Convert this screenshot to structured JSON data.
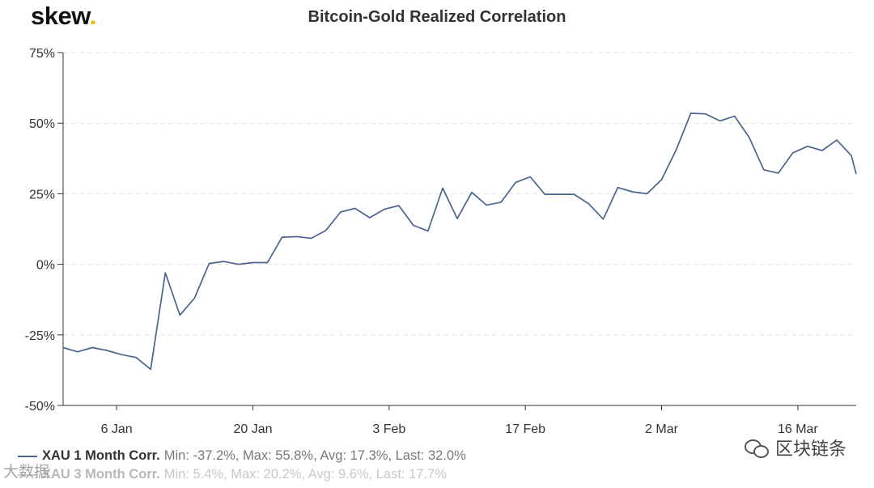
{
  "logo": {
    "text": "skew",
    "dot": "."
  },
  "chart_data": {
    "type": "line",
    "title": "Bitcoin-Gold Realized Correlation",
    "xlabel": "",
    "ylabel": "",
    "ylim": [
      -50,
      75
    ],
    "y_ticks": [
      {
        "value": 75,
        "label": "75%"
      },
      {
        "value": 50,
        "label": "50%"
      },
      {
        "value": 25,
        "label": "25%"
      },
      {
        "value": 0,
        "label": "0%"
      },
      {
        "value": -25,
        "label": "-25%"
      },
      {
        "value": -50,
        "label": "-50%"
      }
    ],
    "x_ticks": [
      {
        "value": 6,
        "label": "6 Jan"
      },
      {
        "value": 20,
        "label": "20 Jan"
      },
      {
        "value": 34,
        "label": "3 Feb"
      },
      {
        "value": 48,
        "label": "17 Feb"
      },
      {
        "value": 62,
        "label": "2 Mar"
      },
      {
        "value": 76,
        "label": "16 Mar"
      }
    ],
    "xlim": [
      0.5,
      82
    ],
    "grid": true,
    "legend_position": "bottom-left",
    "series": [
      {
        "name": "XAU 1 Month Corr.",
        "color": "#4a6491",
        "stats": "Min: -37.2%, Max: 55.8%, Avg: 17.3%, Last: 32.0%",
        "x": [
          0.5,
          2,
          3.5,
          5,
          6.5,
          8,
          9.5,
          11,
          12.5,
          14,
          15.5,
          17,
          18.5,
          20,
          21.5,
          23,
          24.5,
          26,
          27.5,
          29,
          30.5,
          32,
          33.5,
          35,
          36.5,
          38,
          39.5,
          41,
          42.5,
          44,
          45.5,
          47,
          48.5,
          50,
          51.5,
          53,
          54.5,
          56,
          57.5,
          59,
          60.5,
          62,
          63.5,
          65,
          66.5,
          68,
          69.5,
          71,
          72.5,
          74,
          75.5,
          77,
          78.5,
          80,
          81.5,
          82
        ],
        "y": [
          -29.5,
          -31,
          -29.5,
          -30.5,
          -32,
          -33,
          -37.2,
          -3,
          -18,
          -12,
          0.3,
          1,
          0,
          0.6,
          0.6,
          9.6,
          9.8,
          9.2,
          12,
          18.5,
          19.8,
          16.5,
          19.5,
          20.8,
          13.8,
          11.8,
          27,
          16.2,
          25.5,
          21,
          22,
          29,
          31,
          24.8,
          24.8,
          24.8,
          21.5,
          16,
          27.2,
          25.7,
          25,
          30,
          40.5,
          53.5,
          53.3,
          50.8,
          52.5,
          45,
          33.5,
          32.3,
          39.5,
          41.8,
          40.3,
          44,
          38.5,
          32
        ]
      },
      {
        "name": "XAU 3 Month Corr.",
        "color": "#c8c8c8",
        "stats": "Min: 5.4%, Max: 20.2%, Avg: 9.6%, Last: 17.7%",
        "x": [],
        "y": []
      }
    ]
  },
  "watermarks": {
    "left": "大数据",
    "right": "区块链条"
  }
}
